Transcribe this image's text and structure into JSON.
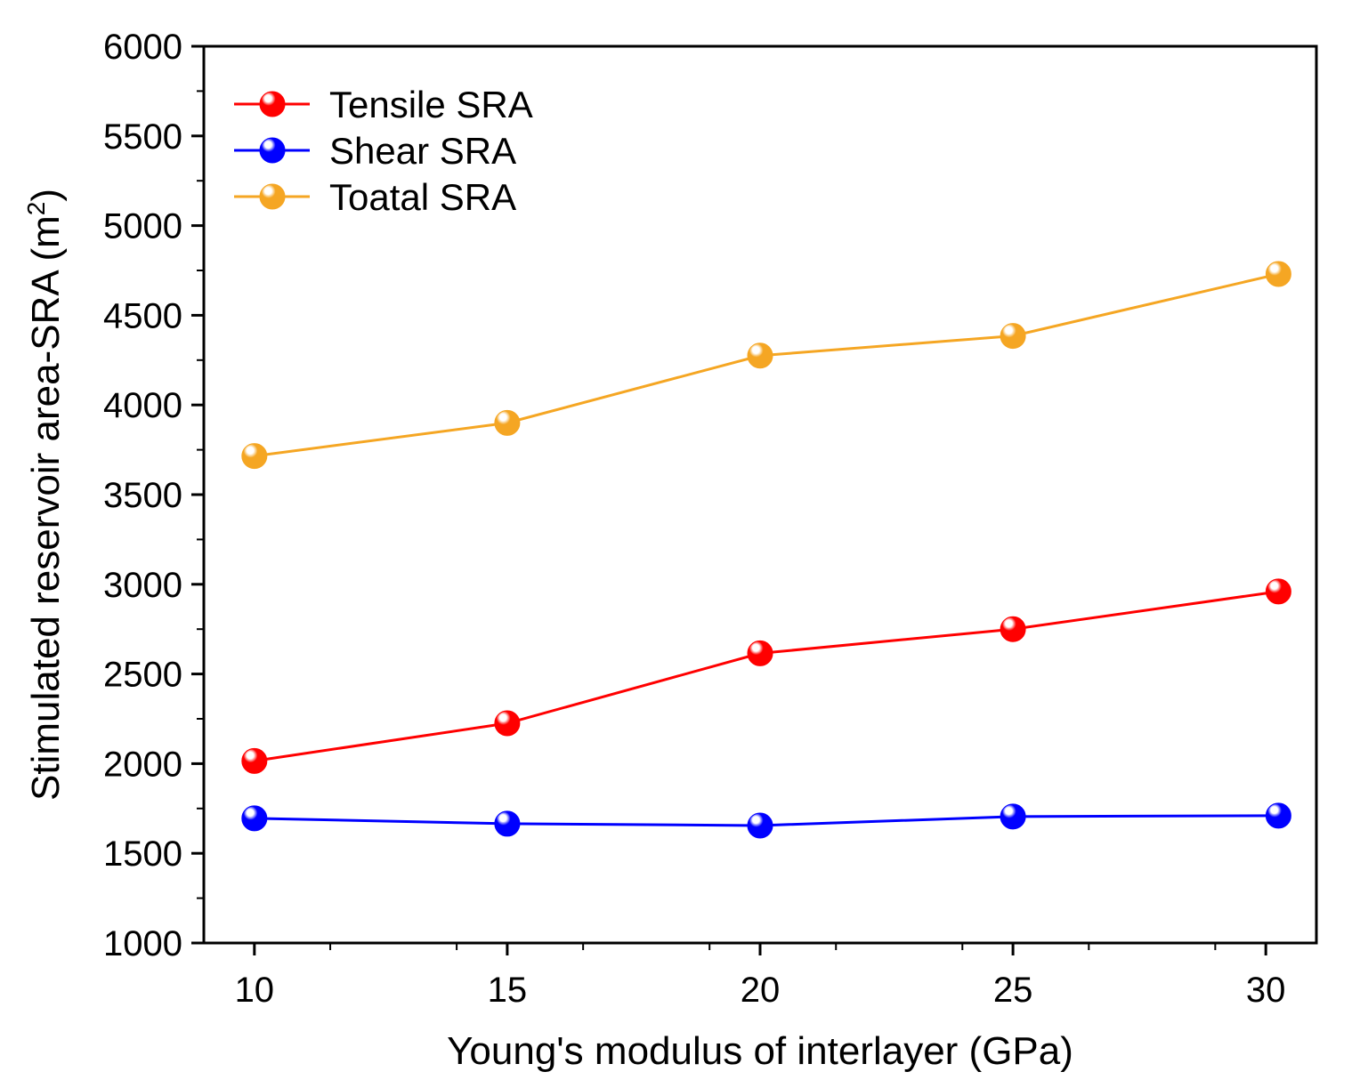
{
  "chart_data": {
    "type": "line",
    "xlabel": "Young's modulus of interlayer (GPa)",
    "ylabel_main": "Stimulated reservoir area-SRA (m",
    "ylabel_sup": "2",
    "ylabel_close": ")",
    "xlim": [
      9,
      31
    ],
    "ylim": [
      1000,
      6000
    ],
    "x_ticks": [
      10,
      15,
      20,
      25,
      30
    ],
    "y_ticks": [
      1000,
      1500,
      2000,
      2500,
      3000,
      3500,
      4000,
      4500,
      5000,
      5500,
      6000
    ],
    "x_tick_labels": [
      "10",
      "15",
      "20",
      "25",
      "30"
    ],
    "y_tick_labels": [
      "1000",
      "1500",
      "2000",
      "2500",
      "3000",
      "3500",
      "4000",
      "4500",
      "5000",
      "5500",
      "6000"
    ],
    "legend_position": "top-left",
    "grid": false,
    "series": [
      {
        "name": "Tensile SRA",
        "color": "#ff0000",
        "x": [
          10,
          15,
          20,
          25,
          30.25
        ],
        "y": [
          2015,
          2225,
          2615,
          2750,
          2960
        ]
      },
      {
        "name": "Shear SRA",
        "color": "#0000ff",
        "x": [
          10,
          15,
          20,
          25,
          30.25
        ],
        "y": [
          1695,
          1665,
          1655,
          1705,
          1710
        ]
      },
      {
        "name": "Toatal SRA",
        "color": "#f5a623",
        "x": [
          10,
          15,
          20,
          25,
          30.25
        ],
        "y": [
          3715,
          3900,
          4275,
          4385,
          4730
        ]
      }
    ]
  }
}
